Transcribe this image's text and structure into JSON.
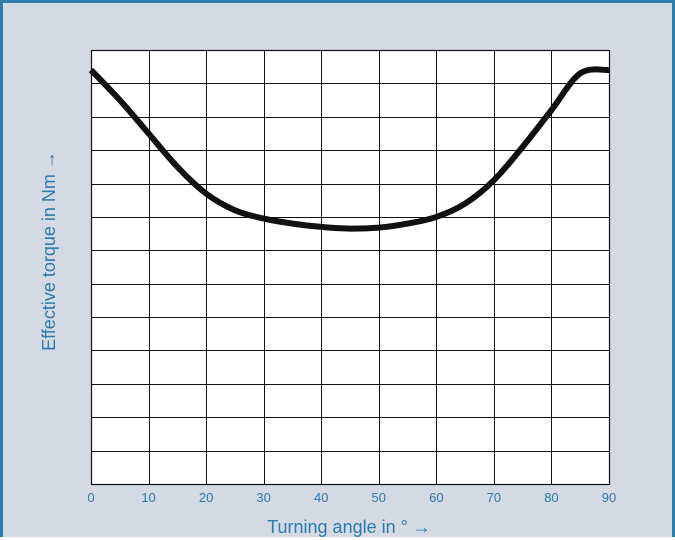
{
  "chart_data": {
    "type": "line",
    "title": "",
    "xlabel": "Turning angle in ° →",
    "ylabel": "Effective torque in Nm →",
    "xlim": [
      0,
      90
    ],
    "ylim": [
      0,
      13
    ],
    "x_ticks": [
      "0",
      "10",
      "20",
      "30",
      "40",
      "50",
      "60",
      "70",
      "80",
      "90"
    ],
    "y_ticks": [],
    "grid": true,
    "grid_x_step": 10,
    "grid_y_step": 1,
    "series": [
      {
        "color": "#111111",
        "x": [
          0,
          5,
          10,
          15,
          20,
          25,
          30,
          35,
          40,
          45,
          50,
          55,
          60,
          65,
          70,
          75,
          80,
          85,
          90
        ],
        "y": [
          12.4,
          11.5,
          10.5,
          9.5,
          8.7,
          8.2,
          7.95,
          7.8,
          7.7,
          7.65,
          7.68,
          7.8,
          8.0,
          8.4,
          9.1,
          10.1,
          11.2,
          12.3,
          12.4
        ]
      }
    ]
  },
  "colors": {
    "background": "#d4d9e3",
    "frame": "#2f7ea8",
    "text": "#2a7cad",
    "grid": "#111111",
    "curve": "#111111"
  }
}
